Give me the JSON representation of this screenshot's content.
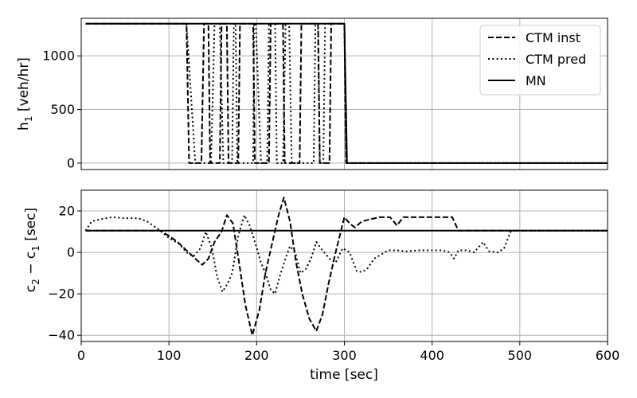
{
  "chart_data": [
    {
      "type": "line",
      "ylabel": "h",
      "ylabel_sub": "1",
      "ylabel_suffix": " [veh/hr]",
      "xlim": [
        0,
        600
      ],
      "ylim": [
        -60,
        1350
      ],
      "yticks": [
        0,
        500,
        1000
      ],
      "ytick_labels": [
        "0",
        "500",
        "1000"
      ],
      "grid": true,
      "legend": "top-right",
      "series": [
        {
          "name": "CTM inst",
          "style": "dashed",
          "color": "#000000",
          "points": [
            [
              5,
              1300
            ],
            [
              118,
              1300
            ],
            [
              120,
              1300
            ],
            [
              123,
              0
            ],
            [
              137,
              0
            ],
            [
              140,
              1300
            ],
            [
              145,
              1300
            ],
            [
              147,
              0
            ],
            [
              158,
              0
            ],
            [
              160,
              1300
            ],
            [
              166,
              1300
            ],
            [
              168,
              0
            ],
            [
              179,
              0
            ],
            [
              181,
              1300
            ],
            [
              196,
              1300
            ],
            [
              198,
              0
            ],
            [
              214,
              0
            ],
            [
              216,
              1300
            ],
            [
              230,
              1300
            ],
            [
              232,
              0
            ],
            [
              249,
              0
            ],
            [
              251,
              1300
            ],
            [
              270,
              1300
            ],
            [
              272,
              0
            ],
            [
              283,
              0
            ],
            [
              285,
              1300
            ],
            [
              300,
              1300
            ],
            [
              302,
              0
            ],
            [
              600,
              0
            ]
          ]
        },
        {
          "name": "CTM pred",
          "style": "dotted",
          "color": "#000000",
          "points": [
            [
              5,
              1300
            ],
            [
              118,
              1300
            ],
            [
              120,
              1300
            ],
            [
              130,
              0
            ],
            [
              148,
              0
            ],
            [
              152,
              1300
            ],
            [
              158,
              1300
            ],
            [
              162,
              0
            ],
            [
              172,
              0
            ],
            [
              174,
              1300
            ],
            [
              176,
              1300
            ],
            [
              178,
              0
            ],
            [
              196,
              0
            ],
            [
              197,
              1300
            ],
            [
              199,
              1300
            ],
            [
              205,
              0
            ],
            [
              212,
              0
            ],
            [
              214,
              1300
            ],
            [
              221,
              1300
            ],
            [
              223,
              0
            ],
            [
              230,
              0
            ],
            [
              233,
              1300
            ],
            [
              237,
              1300
            ],
            [
              240,
              0
            ],
            [
              265,
              0
            ],
            [
              267,
              1300
            ],
            [
              270,
              1300
            ],
            [
              272,
              0
            ],
            [
              276,
              0
            ],
            [
              278,
              1300
            ],
            [
              300,
              1300
            ],
            [
              302,
              0
            ],
            [
              600,
              0
            ]
          ]
        },
        {
          "name": "MN",
          "style": "solid",
          "color": "#000000",
          "points": [
            [
              5,
              1300
            ],
            [
              300,
              1300
            ],
            [
              303,
              0
            ],
            [
              600,
              0
            ]
          ]
        }
      ]
    },
    {
      "type": "line",
      "xlabel": "time [sec]",
      "ylabel": "c",
      "ylabel_sub": "2",
      "ylabel_mid": " − c",
      "ylabel_sub2": "1",
      "ylabel_suffix": " [sec]",
      "xlim": [
        0,
        600
      ],
      "ylim": [
        -43,
        30
      ],
      "xticks": [
        0,
        100,
        200,
        300,
        400,
        500,
        600
      ],
      "xtick_labels": [
        "0",
        "100",
        "200",
        "300",
        "400",
        "500",
        "600"
      ],
      "yticks": [
        -40,
        -20,
        0,
        20
      ],
      "ytick_labels": [
        "−40",
        "−20",
        "0",
        "20"
      ],
      "grid": true,
      "series": [
        {
          "name": "CTM inst",
          "style": "dashed",
          "color": "#000000",
          "points": [
            [
              5,
              10.5
            ],
            [
              90,
              10.5
            ],
            [
              100,
              8
            ],
            [
              110,
              5
            ],
            [
              120,
              1
            ],
            [
              130,
              -3
            ],
            [
              138,
              -6
            ],
            [
              145,
              -3
            ],
            [
              152,
              5
            ],
            [
              160,
              10
            ],
            [
              166,
              18
            ],
            [
              173,
              14
            ],
            [
              180,
              -5
            ],
            [
              187,
              -25
            ],
            [
              195,
              -40
            ],
            [
              203,
              -28
            ],
            [
              210,
              -10
            ],
            [
              218,
              5
            ],
            [
              225,
              18
            ],
            [
              231,
              26.5
            ],
            [
              238,
              15
            ],
            [
              245,
              -5
            ],
            [
              252,
              -20
            ],
            [
              260,
              -32
            ],
            [
              268,
              -38
            ],
            [
              275,
              -30
            ],
            [
              282,
              -15
            ],
            [
              290,
              0
            ],
            [
              300,
              17
            ],
            [
              306,
              14
            ],
            [
              312,
              12
            ],
            [
              320,
              15
            ],
            [
              330,
              16
            ],
            [
              340,
              17
            ],
            [
              352,
              17
            ],
            [
              360,
              13
            ],
            [
              367,
              17
            ],
            [
              380,
              17
            ],
            [
              400,
              17
            ],
            [
              423,
              17
            ],
            [
              430,
              10.5
            ],
            [
              600,
              10.5
            ]
          ]
        },
        {
          "name": "CTM pred",
          "style": "dotted",
          "color": "#000000",
          "points": [
            [
              5,
              10.5
            ],
            [
              12,
              15
            ],
            [
              22,
              16
            ],
            [
              35,
              17
            ],
            [
              50,
              16.5
            ],
            [
              65,
              16.5
            ],
            [
              75,
              15
            ],
            [
              90,
              10.5
            ],
            [
              100,
              7
            ],
            [
              112,
              4
            ],
            [
              120,
              0
            ],
            [
              128,
              -2
            ],
            [
              136,
              2
            ],
            [
              142,
              10
            ],
            [
              149,
              2
            ],
            [
              155,
              -12
            ],
            [
              161,
              -19
            ],
            [
              167,
              -15
            ],
            [
              172,
              -10
            ],
            [
              179,
              8
            ],
            [
              186,
              18
            ],
            [
              192,
              13
            ],
            [
              198,
              5
            ],
            [
              205,
              -5
            ],
            [
              210,
              -10
            ],
            [
              216,
              -18
            ],
            [
              221,
              -20
            ],
            [
              226,
              -12
            ],
            [
              232,
              -4
            ],
            [
              238,
              3
            ],
            [
              244,
              0
            ],
            [
              250,
              -10
            ],
            [
              256,
              -8
            ],
            [
              262,
              -3
            ],
            [
              268,
              5
            ],
            [
              275,
              1
            ],
            [
              283,
              -3
            ],
            [
              290,
              -5
            ],
            [
              298,
              2
            ],
            [
              306,
              0
            ],
            [
              314,
              -9
            ],
            [
              320,
              -9.5
            ],
            [
              326,
              -8
            ],
            [
              334,
              -3
            ],
            [
              342,
              -1
            ],
            [
              350,
              1
            ],
            [
              360,
              1
            ],
            [
              370,
              0.5
            ],
            [
              385,
              1
            ],
            [
              400,
              1
            ],
            [
              412,
              1
            ],
            [
              420,
              0
            ],
            [
              425,
              -3
            ],
            [
              430,
              1
            ],
            [
              440,
              1
            ],
            [
              448,
              0
            ],
            [
              458,
              5
            ],
            [
              465,
              0.5
            ],
            [
              475,
              0
            ],
            [
              482,
              2
            ],
            [
              490,
              10.5
            ],
            [
              600,
              10.5
            ]
          ]
        },
        {
          "name": "MN",
          "style": "solid",
          "color": "#000000",
          "points": [
            [
              5,
              10.5
            ],
            [
              600,
              10.5
            ]
          ]
        }
      ]
    }
  ]
}
